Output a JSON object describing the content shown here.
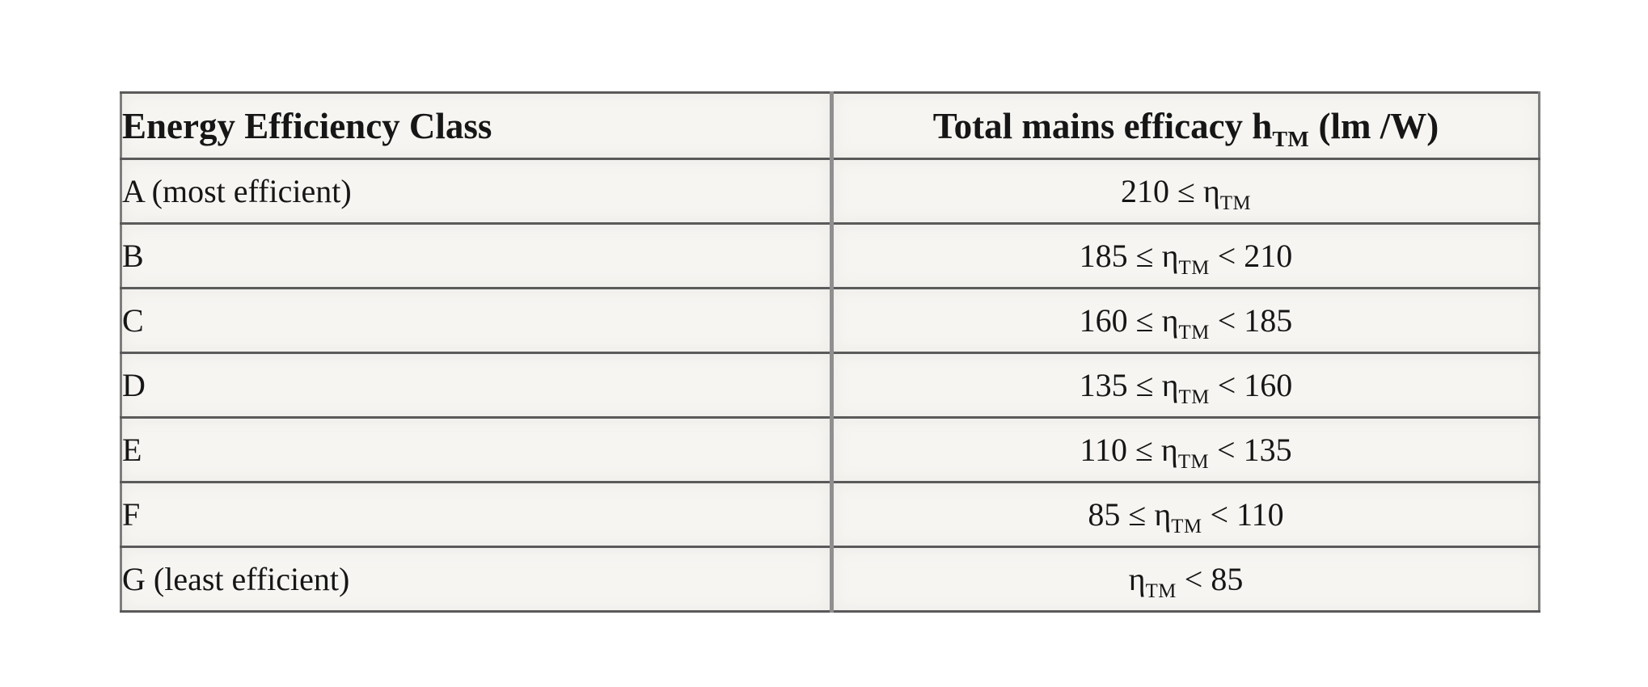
{
  "page": {
    "background_color": "#ffffff",
    "cell_background_color": "#f6f5f2",
    "border_color": "#7d7d7d",
    "text_color": "#161616"
  },
  "table": {
    "header": {
      "class_label": "Energy Efficiency Class",
      "efficacy_prefix": "Total mains efficacy h",
      "efficacy_sub": "TM",
      "efficacy_suffix": " (lm /W)"
    },
    "rows": [
      {
        "class_label": "A (most efficient)",
        "prefix": "210 ≤ ",
        "eta": "η",
        "sub": "TM",
        "suffix": ""
      },
      {
        "class_label": "B",
        "prefix": "185 ≤ ",
        "eta": "η",
        "sub": "TM",
        "suffix": " < 210"
      },
      {
        "class_label": "C",
        "prefix": "160 ≤ ",
        "eta": "η",
        "sub": "TM",
        "suffix": " < 185"
      },
      {
        "class_label": "D",
        "prefix": "135 ≤ ",
        "eta": "η",
        "sub": "TM",
        "suffix": " < 160"
      },
      {
        "class_label": "E",
        "prefix": "110 ≤ ",
        "eta": "η",
        "sub": "TM",
        "suffix": " < 135"
      },
      {
        "class_label": "F",
        "prefix": "85 ≤ ",
        "eta": "η",
        "sub": "TM",
        "suffix": " < 110"
      },
      {
        "class_label": "G (least efficient)",
        "prefix": "",
        "eta": "η",
        "sub": "TM",
        "suffix": " < 85"
      }
    ]
  },
  "chart_data": {
    "type": "table",
    "columns": [
      "Energy Efficiency Class",
      "Total mains efficacy hTM (lm /W)"
    ],
    "rows": [
      [
        "A (most efficient)",
        "210 ≤ ηTM"
      ],
      [
        "B",
        "185 ≤ ηTM < 210"
      ],
      [
        "C",
        "160 ≤ ηTM < 185"
      ],
      [
        "D",
        "135 ≤ ηTM < 160"
      ],
      [
        "E",
        "110 ≤ ηTM < 135"
      ],
      [
        "F",
        "85 ≤ ηTM < 110"
      ],
      [
        "G (least efficient)",
        "ηTM < 85"
      ]
    ]
  }
}
